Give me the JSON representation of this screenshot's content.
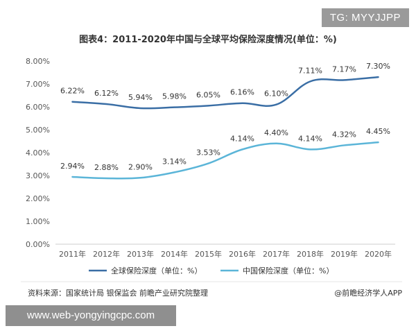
{
  "watermark_tag": "TG: MYYJJPP",
  "url_tag": "www.web-yongyingcpc.com",
  "source_note": "资料来源：国家统计局 银保监会 前瞻产业研究院整理",
  "brand_note": "@前瞻经济学人APP",
  "colors": {
    "global": "#3a6ea5",
    "china": "#5bb5d8",
    "axis": "#cccccc",
    "text": "#333333"
  },
  "chart_data": {
    "type": "line",
    "title": "图表4：2011-2020年中国与全球平均保险深度情况(单位：%)",
    "categories": [
      "2011年",
      "2012年",
      "2013年",
      "2014年",
      "2015年",
      "2016年",
      "2017年",
      "2018年",
      "2019年",
      "2020年"
    ],
    "ylim": [
      0,
      8
    ],
    "yticks": [
      "0.00%",
      "1.00%",
      "2.00%",
      "3.00%",
      "4.00%",
      "5.00%",
      "6.00%",
      "7.00%",
      "8.00%"
    ],
    "legend_position": "bottom",
    "series": [
      {
        "name": "全球保险深度（单位：%）",
        "values": [
          6.22,
          6.12,
          5.94,
          5.98,
          6.05,
          6.16,
          6.1,
          7.11,
          7.17,
          7.3
        ],
        "labels": [
          "6.22%",
          "6.12%",
          "5.94%",
          "5.98%",
          "6.05%",
          "6.16%",
          "6.10%",
          "7.11%",
          "7.17%",
          "7.30%"
        ]
      },
      {
        "name": "中国保险深度（单位：%）",
        "values": [
          2.94,
          2.88,
          2.9,
          3.14,
          3.53,
          4.14,
          4.4,
          4.14,
          4.32,
          4.45
        ],
        "labels": [
          "2.94%",
          "2.88%",
          "2.90%",
          "3.14%",
          "3.53%",
          "4.14%",
          "4.40%",
          "4.14%",
          "4.32%",
          "4.45%"
        ]
      }
    ]
  }
}
